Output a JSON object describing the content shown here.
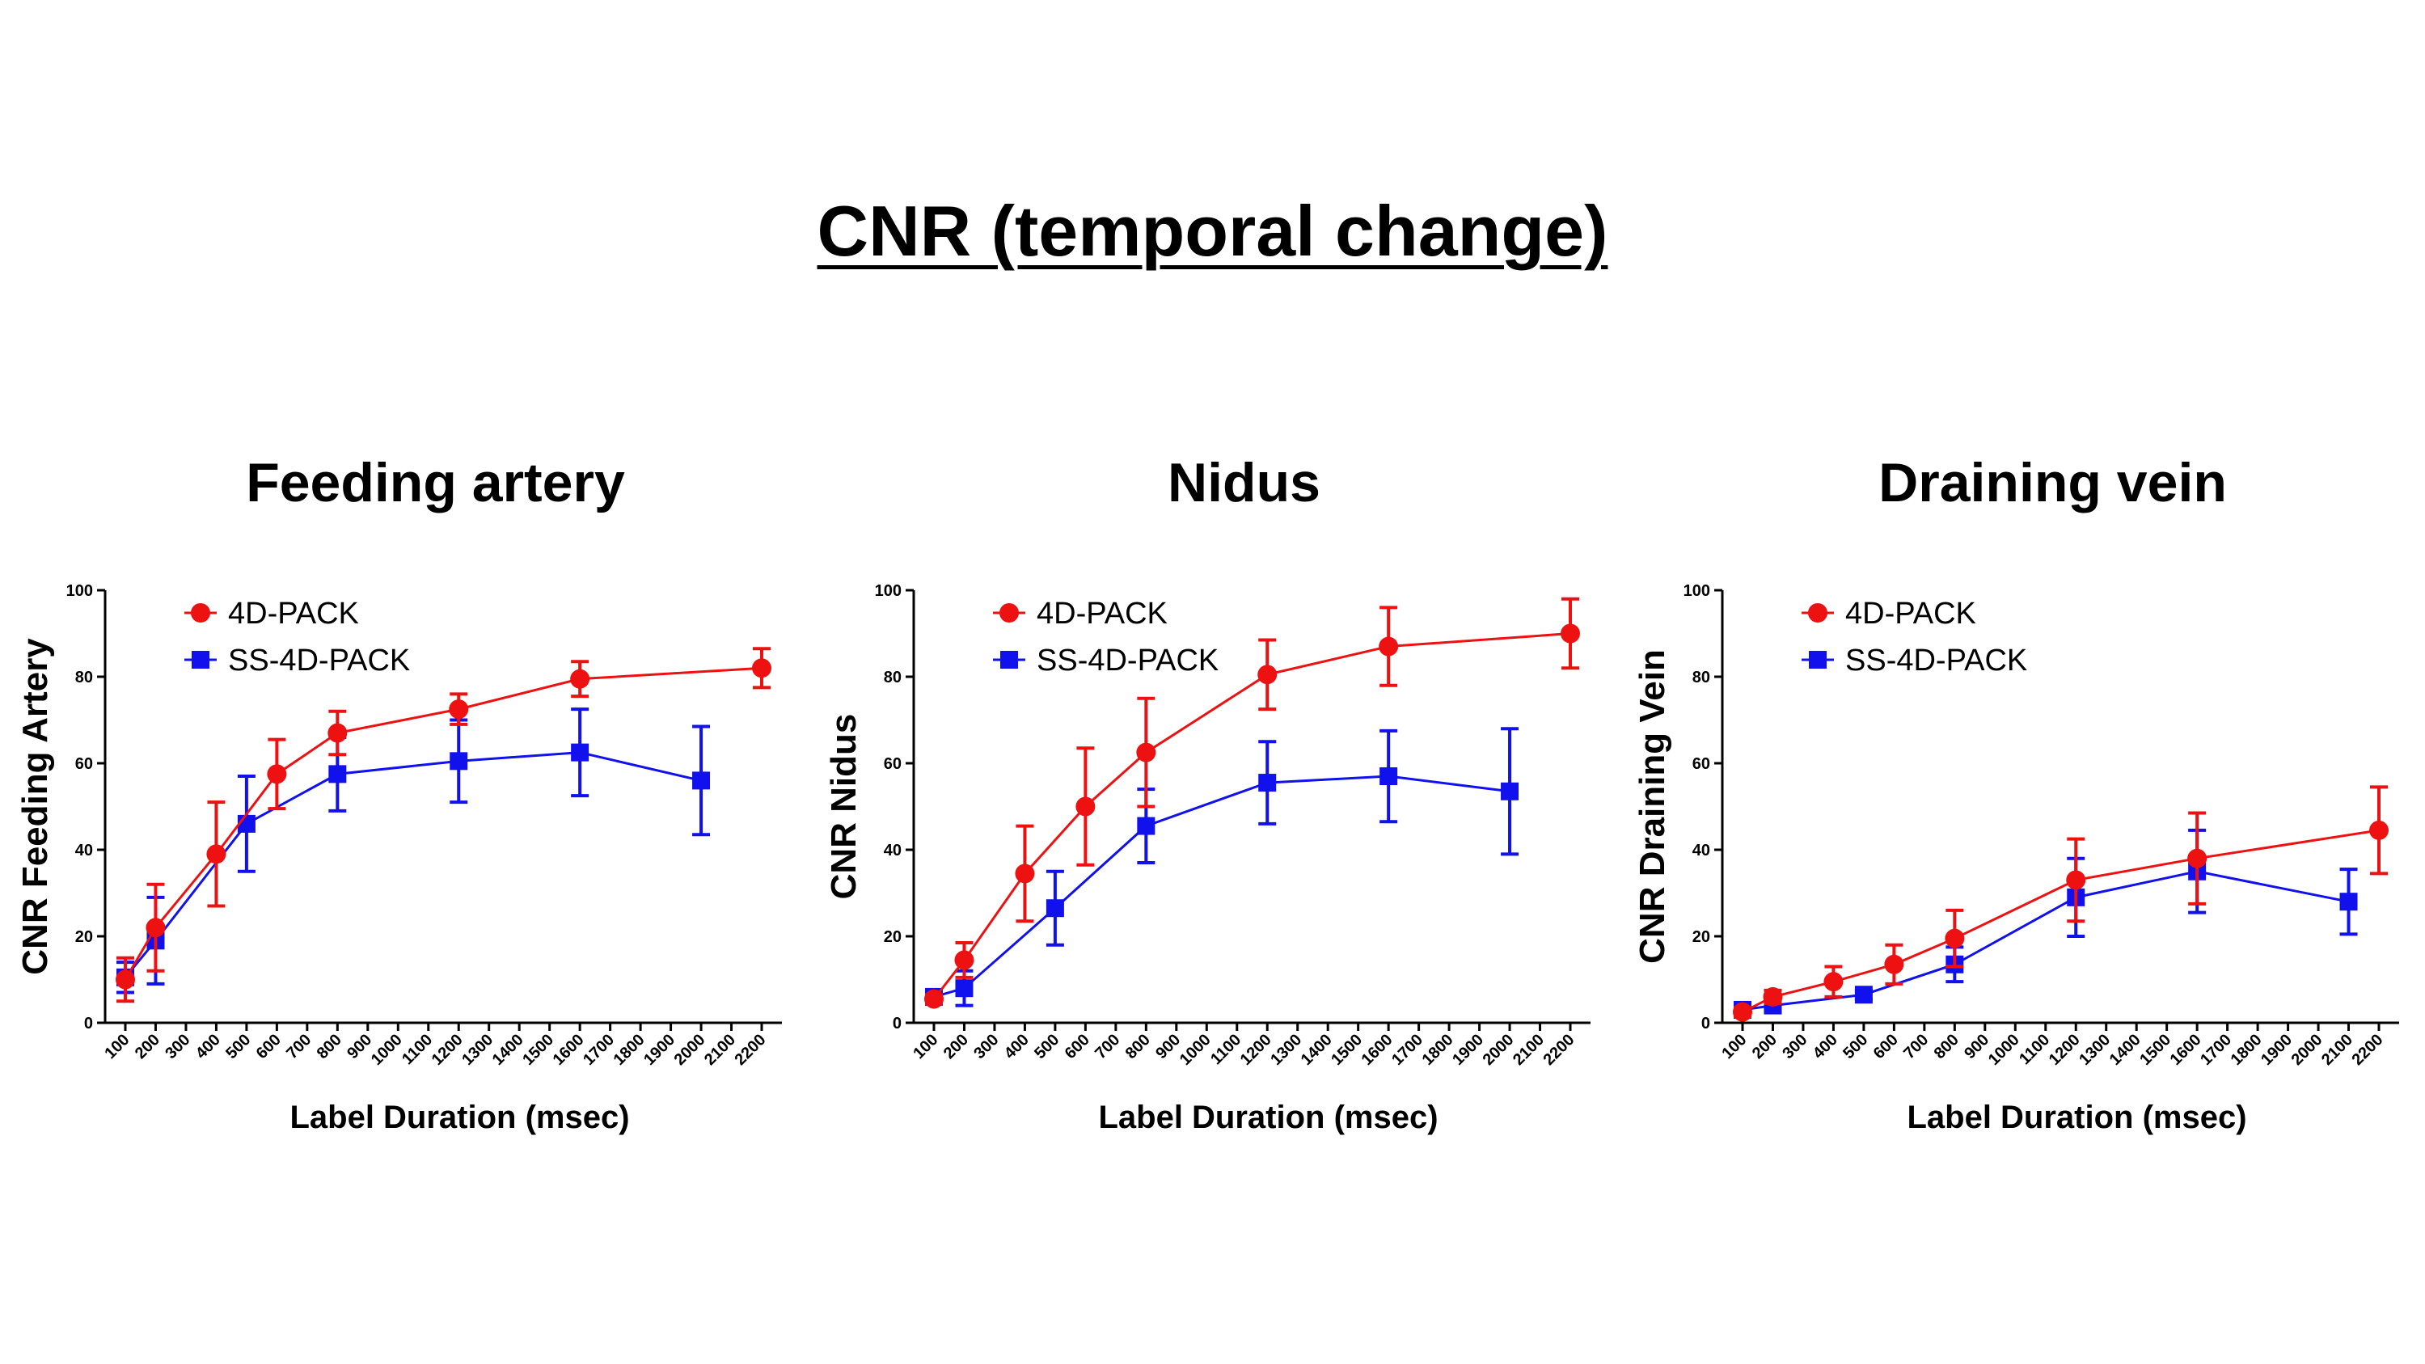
{
  "title": "CNR (temporal change)",
  "colors": {
    "s1": "#ee1111",
    "s2": "#1111ee"
  },
  "chart_data": [
    {
      "type": "line",
      "title": "Feeding artery",
      "xlabel": "Label Duration (msec)",
      "ylabel": "CNR Feeding Artery",
      "ylim": [
        0,
        100
      ],
      "yticks": [
        "0",
        "20",
        "40",
        "60",
        "80",
        "100"
      ],
      "categories": [
        "100",
        "200",
        "300",
        "400",
        "500",
        "600",
        "700",
        "800",
        "900",
        "1000",
        "1100",
        "1200",
        "1300",
        "1400",
        "1500",
        "1600",
        "1700",
        "1800",
        "1900",
        "2000",
        "2100",
        "2200"
      ],
      "legend": [
        "4D-PACK",
        "SS-4D-PACK"
      ],
      "series": [
        {
          "name": "4D-PACK",
          "marker": "circle",
          "x": [
            100,
            200,
            400,
            600,
            800,
            1200,
            1600,
            2200
          ],
          "values": [
            10,
            22,
            39,
            57.5,
            67,
            72.5,
            79.5,
            82
          ],
          "err": [
            5,
            10,
            12,
            8,
            5,
            3.5,
            4,
            4.5
          ]
        },
        {
          "name": "SS-4D-PACK",
          "marker": "square",
          "x": [
            100,
            200,
            500,
            800,
            1200,
            1600,
            2000
          ],
          "values": [
            10.5,
            19,
            46,
            57.5,
            60.5,
            62.5,
            56
          ],
          "err": [
            3.5,
            10,
            11,
            8.5,
            9.5,
            10,
            12.5
          ]
        }
      ]
    },
    {
      "type": "line",
      "title": "Nidus",
      "xlabel": "Label Duration (msec)",
      "ylabel": "CNR Nidus",
      "ylim": [
        0,
        100
      ],
      "yticks": [
        "0",
        "20",
        "40",
        "60",
        "80",
        "100"
      ],
      "categories": [
        "100",
        "200",
        "300",
        "400",
        "500",
        "600",
        "700",
        "800",
        "900",
        "1000",
        "1100",
        "1200",
        "1300",
        "1400",
        "1500",
        "1600",
        "1700",
        "1800",
        "1900",
        "2000",
        "2100",
        "2200"
      ],
      "legend": [
        "4D-PACK",
        "SS-4D-PACK"
      ],
      "series": [
        {
          "name": "4D-PACK",
          "marker": "circle",
          "x": [
            100,
            200,
            400,
            600,
            800,
            1200,
            1600,
            2200
          ],
          "values": [
            5.5,
            14.5,
            34.5,
            50,
            62.5,
            80.5,
            87,
            90
          ],
          "err": [
            1,
            4,
            11,
            13.5,
            12.5,
            8,
            9,
            8
          ]
        },
        {
          "name": "SS-4D-PACK",
          "marker": "square",
          "x": [
            100,
            200,
            500,
            800,
            1200,
            1600,
            2000
          ],
          "values": [
            6,
            8,
            26.5,
            45.5,
            55.5,
            57,
            53.5
          ],
          "err": [
            1,
            4,
            8.5,
            8.5,
            9.5,
            10.5,
            14.5
          ]
        }
      ]
    },
    {
      "type": "line",
      "title": "Draining vein",
      "xlabel": "Label Duration (msec)",
      "ylabel": "CNR Draining Vein",
      "ylim": [
        0,
        100
      ],
      "yticks": [
        "0",
        "20",
        "40",
        "60",
        "80",
        "100"
      ],
      "categories": [
        "100",
        "200",
        "300",
        "400",
        "500",
        "600",
        "700",
        "800",
        "900",
        "1000",
        "1100",
        "1200",
        "1300",
        "1400",
        "1500",
        "1600",
        "1700",
        "1800",
        "1900",
        "2000",
        "2100",
        "2200"
      ],
      "legend": [
        "4D-PACK",
        "SS-4D-PACK"
      ],
      "series": [
        {
          "name": "4D-PACK",
          "marker": "circle",
          "x": [
            100,
            200,
            400,
            600,
            800,
            1200,
            1600,
            2200
          ],
          "values": [
            2.5,
            6,
            9.5,
            13.5,
            19.5,
            33,
            38,
            44.5
          ],
          "err": [
            1,
            1.5,
            3.5,
            4.5,
            6.5,
            9.5,
            10.5,
            10
          ]
        },
        {
          "name": "SS-4D-PACK",
          "marker": "square",
          "x": [
            100,
            200,
            500,
            800,
            1200,
            1600,
            2100
          ],
          "values": [
            3,
            4,
            6.5,
            13.5,
            29,
            35,
            28
          ],
          "err": [
            1,
            1,
            1,
            4,
            9,
            9.5,
            7.5
          ]
        }
      ]
    }
  ]
}
